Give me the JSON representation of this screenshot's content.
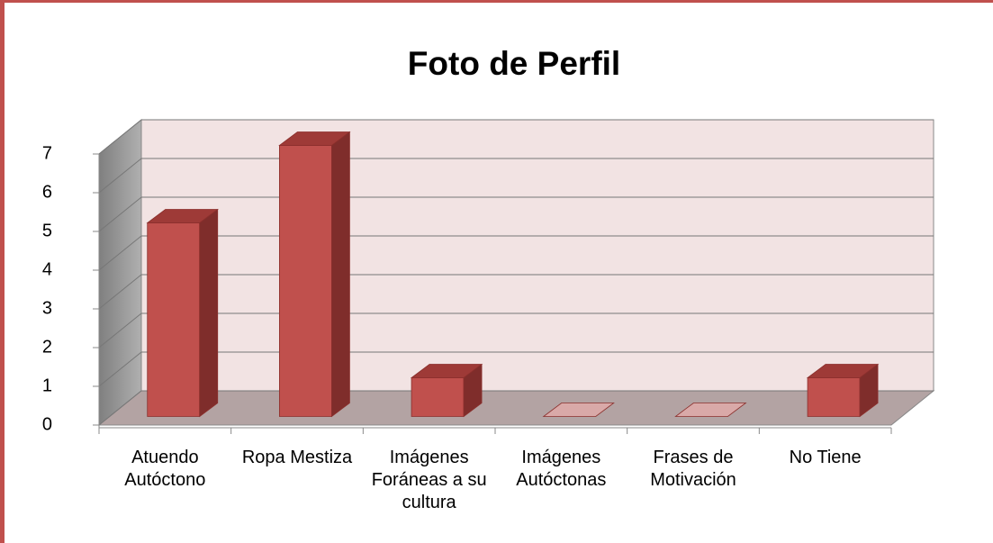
{
  "chart_data": {
    "type": "bar",
    "title": "Foto de Perfil",
    "categories": [
      "Atuendo Autóctono",
      "Ropa Mestiza",
      "Imágenes Foráneas a su cultura",
      "Imágenes Autóctonas",
      "Frases de Motivación",
      "No Tiene"
    ],
    "values": [
      5,
      7,
      1,
      0,
      0,
      1
    ],
    "color": "#c0504d",
    "ylim": [
      0,
      7
    ],
    "yticks": [
      0,
      1,
      2,
      3,
      4,
      5,
      6,
      7
    ],
    "grid": true
  }
}
